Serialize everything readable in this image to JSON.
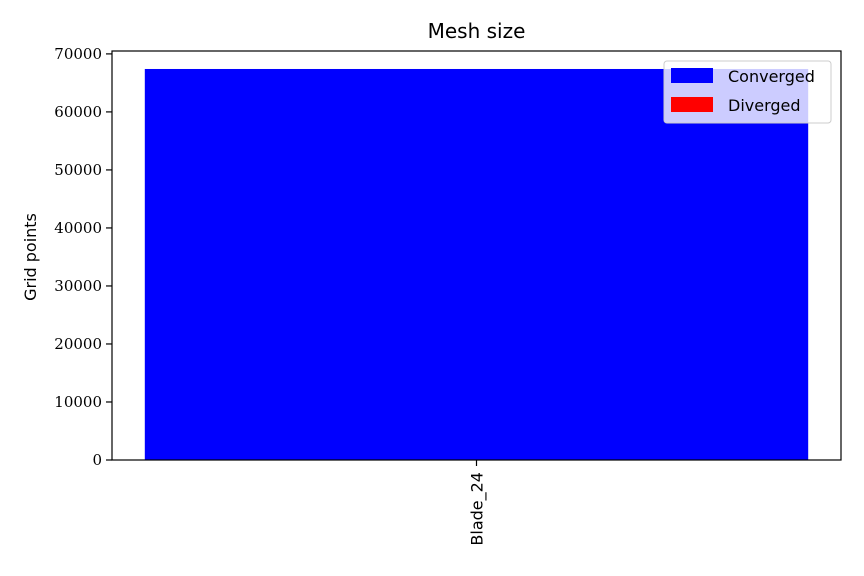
{
  "chart_data": {
    "type": "bar",
    "title": "Mesh size",
    "xlabel": "",
    "ylabel": "Grid points",
    "categories": [
      "Blade_24"
    ],
    "series": [
      {
        "name": "Converged",
        "color": "#0000ff",
        "values": [
          67400
        ]
      },
      {
        "name": "Diverged",
        "color": "#ff0000",
        "values": [
          0
        ]
      }
    ],
    "ylim": [
      0,
      70500
    ],
    "yticks": [
      0,
      10000,
      20000,
      30000,
      40000,
      50000,
      60000,
      70000
    ],
    "ytick_labels": [
      "0",
      "10000",
      "20000",
      "30000",
      "40000",
      "50000",
      "60000",
      "70000"
    ],
    "grid": false,
    "legend_position": "top-right"
  }
}
